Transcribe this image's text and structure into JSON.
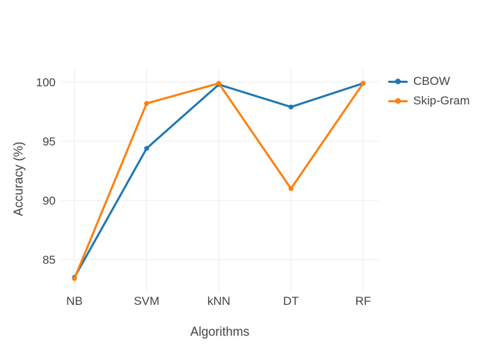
{
  "chart_data": {
    "type": "line",
    "title": "",
    "categories": [
      "NB",
      "SVM",
      "kNN",
      "DT",
      "RF"
    ],
    "series": [
      {
        "name": "CBOW",
        "color": "#1f77b4",
        "values": [
          83.5,
          94.4,
          99.8,
          97.9,
          99.9
        ]
      },
      {
        "name": "Skip-Gram",
        "color": "#ff7f0e",
        "values": [
          83.4,
          98.2,
          99.9,
          91.0,
          99.9
        ]
      }
    ],
    "xlabel": "Algorithms",
    "ylabel": "Accuracy (%)",
    "yticks": [
      85,
      90,
      95,
      100
    ],
    "ylim": [
      82.2,
      101.2
    ],
    "grid": true,
    "legend_position": "right"
  },
  "colors": {
    "grid": "#ebebeb",
    "text": "#444444",
    "background": "#ffffff"
  }
}
